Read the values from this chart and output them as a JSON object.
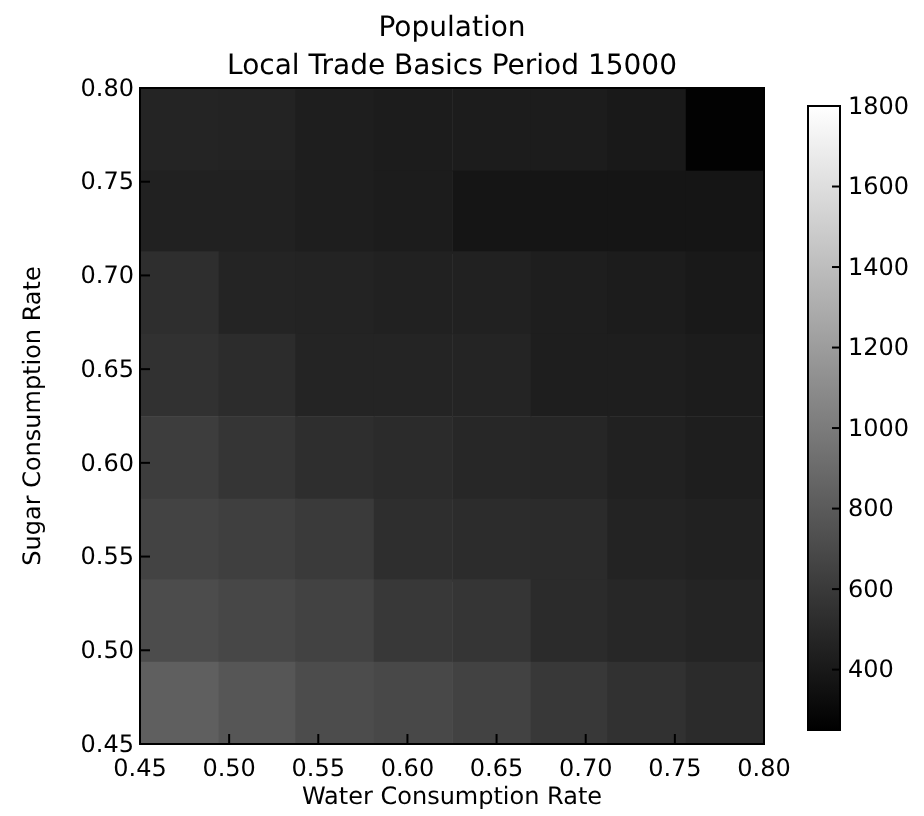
{
  "chart_data": {
    "type": "heatmap",
    "title": "Population",
    "subtitle": "Local Trade Basics Period 15000",
    "xlabel": "Water Consumption Rate",
    "ylabel": "Sugar Consumption Rate",
    "x": [
      0.472,
      0.516,
      0.559,
      0.603,
      0.647,
      0.691,
      0.734,
      0.778
    ],
    "y": [
      0.778,
      0.734,
      0.691,
      0.647,
      0.603,
      0.559,
      0.516,
      0.472
    ],
    "xlim": [
      0.45,
      0.8
    ],
    "xticks": [
      {
        "value": 0.45,
        "label": "0.45"
      },
      {
        "value": 0.5,
        "label": "0.50"
      },
      {
        "value": 0.55,
        "label": "0.55"
      },
      {
        "value": 0.6,
        "label": "0.60"
      },
      {
        "value": 0.65,
        "label": "0.65"
      },
      {
        "value": 0.7,
        "label": "0.70"
      },
      {
        "value": 0.75,
        "label": "0.75"
      },
      {
        "value": 0.8,
        "label": "0.80"
      }
    ],
    "ylim": [
      0.45,
      0.8
    ],
    "yticks": [
      {
        "value": 0.45,
        "label": "0.45"
      },
      {
        "value": 0.5,
        "label": "0.50"
      },
      {
        "value": 0.55,
        "label": "0.55"
      },
      {
        "value": 0.6,
        "label": "0.60"
      },
      {
        "value": 0.65,
        "label": "0.65"
      },
      {
        "value": 0.7,
        "label": "0.70"
      },
      {
        "value": 0.75,
        "label": "0.75"
      },
      {
        "value": 0.8,
        "label": "0.80"
      }
    ],
    "cells": [
      [
        470,
        460,
        430,
        420,
        420,
        420,
        400,
        260
      ],
      [
        450,
        450,
        430,
        420,
        380,
        380,
        380,
        380
      ],
      [
        530,
        470,
        460,
        450,
        450,
        430,
        420,
        400
      ],
      [
        550,
        520,
        470,
        470,
        470,
        430,
        430,
        420
      ],
      [
        620,
        570,
        530,
        510,
        490,
        480,
        450,
        430
      ],
      [
        660,
        630,
        600,
        530,
        520,
        510,
        460,
        450
      ],
      [
        710,
        680,
        650,
        590,
        570,
        510,
        490,
        470
      ],
      [
        830,
        770,
        710,
        690,
        650,
        590,
        550,
        510
      ]
    ],
    "clim": [
      250,
      1800
    ],
    "cticks": [
      400,
      600,
      800,
      1000,
      1200,
      1400,
      1600,
      1800
    ]
  }
}
